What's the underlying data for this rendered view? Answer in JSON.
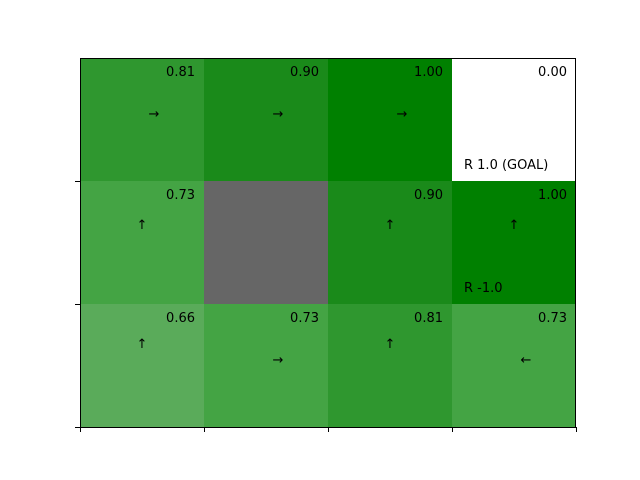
{
  "grid": {
    "rows": 3,
    "cols": 4,
    "cells": [
      {
        "row": 0,
        "col": 0,
        "value": "0.81",
        "arrow": "→",
        "color": "#2f972f"
      },
      {
        "row": 0,
        "col": 1,
        "value": "0.90",
        "arrow": "→",
        "color": "#1a8a1a"
      },
      {
        "row": 0,
        "col": 2,
        "value": "1.00",
        "arrow": "→",
        "color": "#008000"
      },
      {
        "row": 0,
        "col": 3,
        "value": "0.00",
        "arrow": "",
        "color": "#ffffff",
        "reward": "R 1.0 (GOAL)"
      },
      {
        "row": 1,
        "col": 0,
        "value": "0.73",
        "arrow": "↑",
        "color": "#44a444"
      },
      {
        "row": 1,
        "col": 1,
        "value": "",
        "arrow": "",
        "color": "#666666",
        "wall": true
      },
      {
        "row": 1,
        "col": 2,
        "value": "0.90",
        "arrow": "↑",
        "color": "#1a8a1a"
      },
      {
        "row": 1,
        "col": 3,
        "value": "1.00",
        "arrow": "↑",
        "color": "#008000",
        "reward": "R -1.0"
      },
      {
        "row": 2,
        "col": 0,
        "value": "0.66",
        "arrow": "↑",
        "color": "#5aab5a"
      },
      {
        "row": 2,
        "col": 1,
        "value": "0.73",
        "arrow": "→",
        "color": "#44a444"
      },
      {
        "row": 2,
        "col": 2,
        "value": "0.81",
        "arrow": "↑",
        "color": "#2f972f"
      },
      {
        "row": 2,
        "col": 3,
        "value": "0.73",
        "arrow": "←",
        "color": "#44a444"
      }
    ]
  }
}
